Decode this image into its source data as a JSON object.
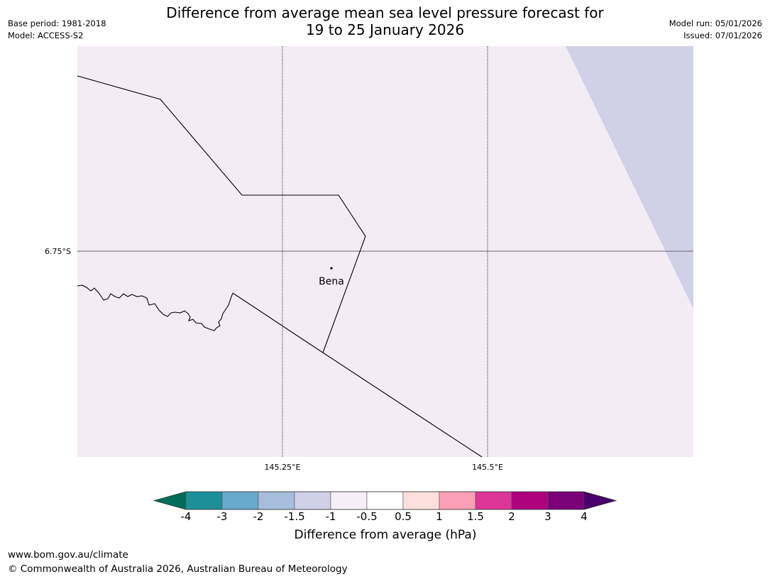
{
  "header": {
    "title_line1": "Difference from average mean sea level pressure forecast for",
    "title_line2": "19 to 25 January 2026",
    "base_period": "Base period: 1981-2018",
    "model": "Model: ACCESS-S2",
    "model_run": "Model run: 05/01/2026",
    "issued": "Issued: 07/01/2026"
  },
  "map": {
    "background_anomaly_color": "#f4ecf5",
    "region_anomaly_color": "#d0d1e6",
    "lat_label": "6.75°S",
    "lon_labels": [
      "145.25°E",
      "145.5°E"
    ],
    "place": {
      "name": "Bena",
      "marker": "dot"
    }
  },
  "colorbar": {
    "title": "Difference from average (hPa)",
    "labels": [
      "-4",
      "-3",
      "-2",
      "-1.5",
      "-1",
      "-0.5",
      "0.5",
      "1",
      "1.5",
      "2",
      "3",
      "4"
    ],
    "colors": [
      "#016c59",
      "#1c9099",
      "#67a9cf",
      "#a6bddb",
      "#d0d1e6",
      "#f6eff7",
      "#ffffff",
      "#fde0dd",
      "#fa9fb5",
      "#dd3497",
      "#ae017e",
      "#7a0177",
      "#49006a"
    ]
  },
  "footer": {
    "url": "www.bom.gov.au/climate",
    "copyright": "© Commonwealth of Australia 2026, Australian Bureau of Meteorology"
  }
}
